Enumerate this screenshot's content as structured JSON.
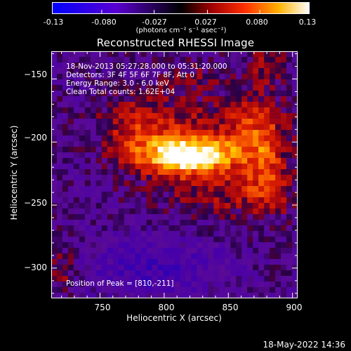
{
  "colorbar": {
    "ticks": [
      "-0.13",
      "-0.080",
      "-0.027",
      "0.027",
      "0.080",
      "0.13"
    ],
    "unit": "(photons cm⁻² s⁻¹ asec⁻²)",
    "range": [
      -0.13,
      0.13
    ]
  },
  "chart_data": {
    "type": "heatmap",
    "title": "Reconstructed RHESSI Image",
    "xlabel": "Heliocentric X (arcsec)",
    "ylabel": "Heliocentric Y (arcsec)",
    "xlim": [
      712,
      904
    ],
    "ylim": [
      -324,
      -128
    ],
    "xticks": [
      "750",
      "800",
      "850",
      "900"
    ],
    "yticks": [
      "−150",
      "−200",
      "−250",
      "−300"
    ],
    "xtick_values": [
      750,
      800,
      850,
      900
    ],
    "ytick_values": [
      -150,
      -200,
      -250,
      -300
    ],
    "annotations": [
      "18-Nov-2013 05:27:28.000 to 05:31:20.000",
      "Detectors: 3F 4F 5F 6F 7F 8F, Att 0",
      "Energy Range: 3.0 - 6.0 keV",
      "Clean    Total counts: 1.62E+04"
    ],
    "peak_label": "Position of Peak = [810,-211]",
    "peak": [
      810,
      -211
    ],
    "grid": false
  },
  "timestamp": "18-May-2022 14:36"
}
